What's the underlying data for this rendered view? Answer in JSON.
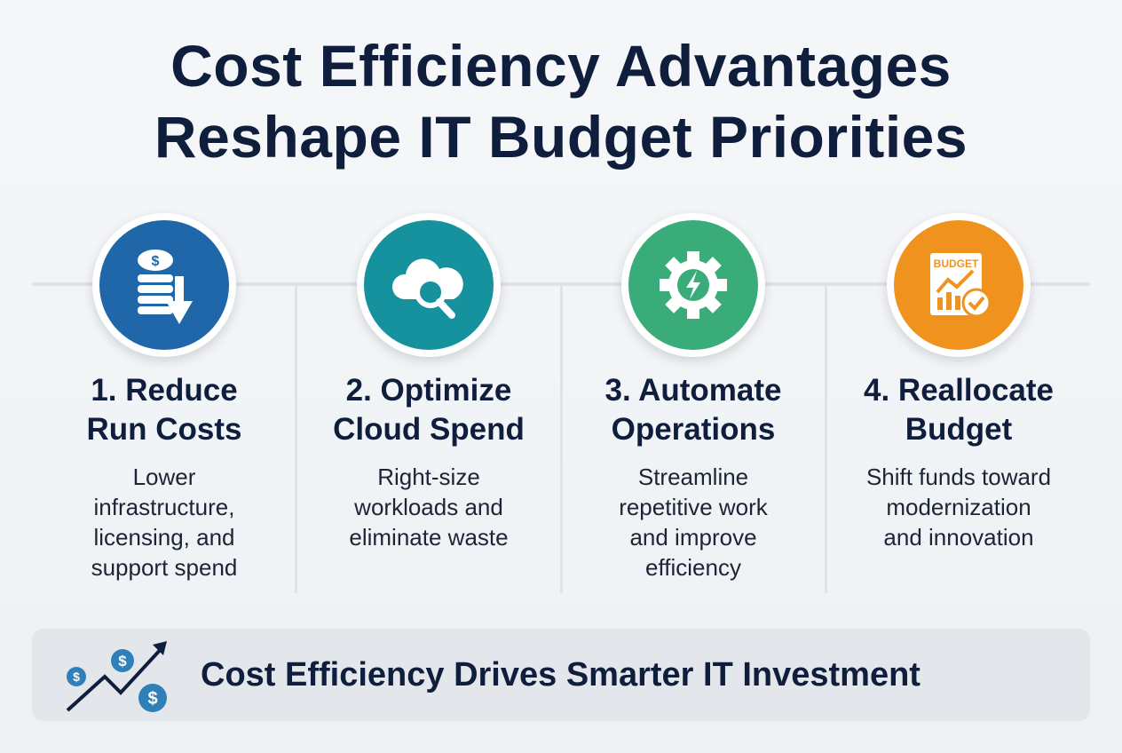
{
  "title": {
    "line1": "Cost Efficiency Advantages",
    "line2": "Reshape IT Budget Priorities"
  },
  "colors": {
    "blue": "#1f67a8",
    "teal": "#15929e",
    "green": "#3aac7a",
    "orange": "#f0921e",
    "navy": "#0f1e3c"
  },
  "steps": [
    {
      "icon": "coins-down-arrow-icon",
      "heading1": "1. Reduce",
      "heading2": "Run Costs",
      "desc": [
        "Lower",
        "infrastructure,",
        "licensing, and",
        "support spend"
      ]
    },
    {
      "icon": "cloud-search-icon",
      "heading1": "2. Optimize",
      "heading2": "Cloud Spend",
      "desc": [
        "Right-size",
        "workloads and",
        "eliminate waste"
      ]
    },
    {
      "icon": "gear-lightning-icon",
      "heading1": "3. Automate",
      "heading2": "Operations",
      "desc": [
        "Streamline",
        "repetitive work",
        "and improve",
        "efficiency"
      ]
    },
    {
      "icon": "budget-chart-check-icon",
      "icon_text": "BUDGET",
      "heading1": "4. Reallocate",
      "heading2": "Budget",
      "desc": [
        "Shift funds toward",
        "modernization",
        "and innovation"
      ]
    }
  ],
  "banner": {
    "icon": "dollar-growth-arrow-icon",
    "text": "Cost Efficiency Drives Smarter IT Investment"
  }
}
